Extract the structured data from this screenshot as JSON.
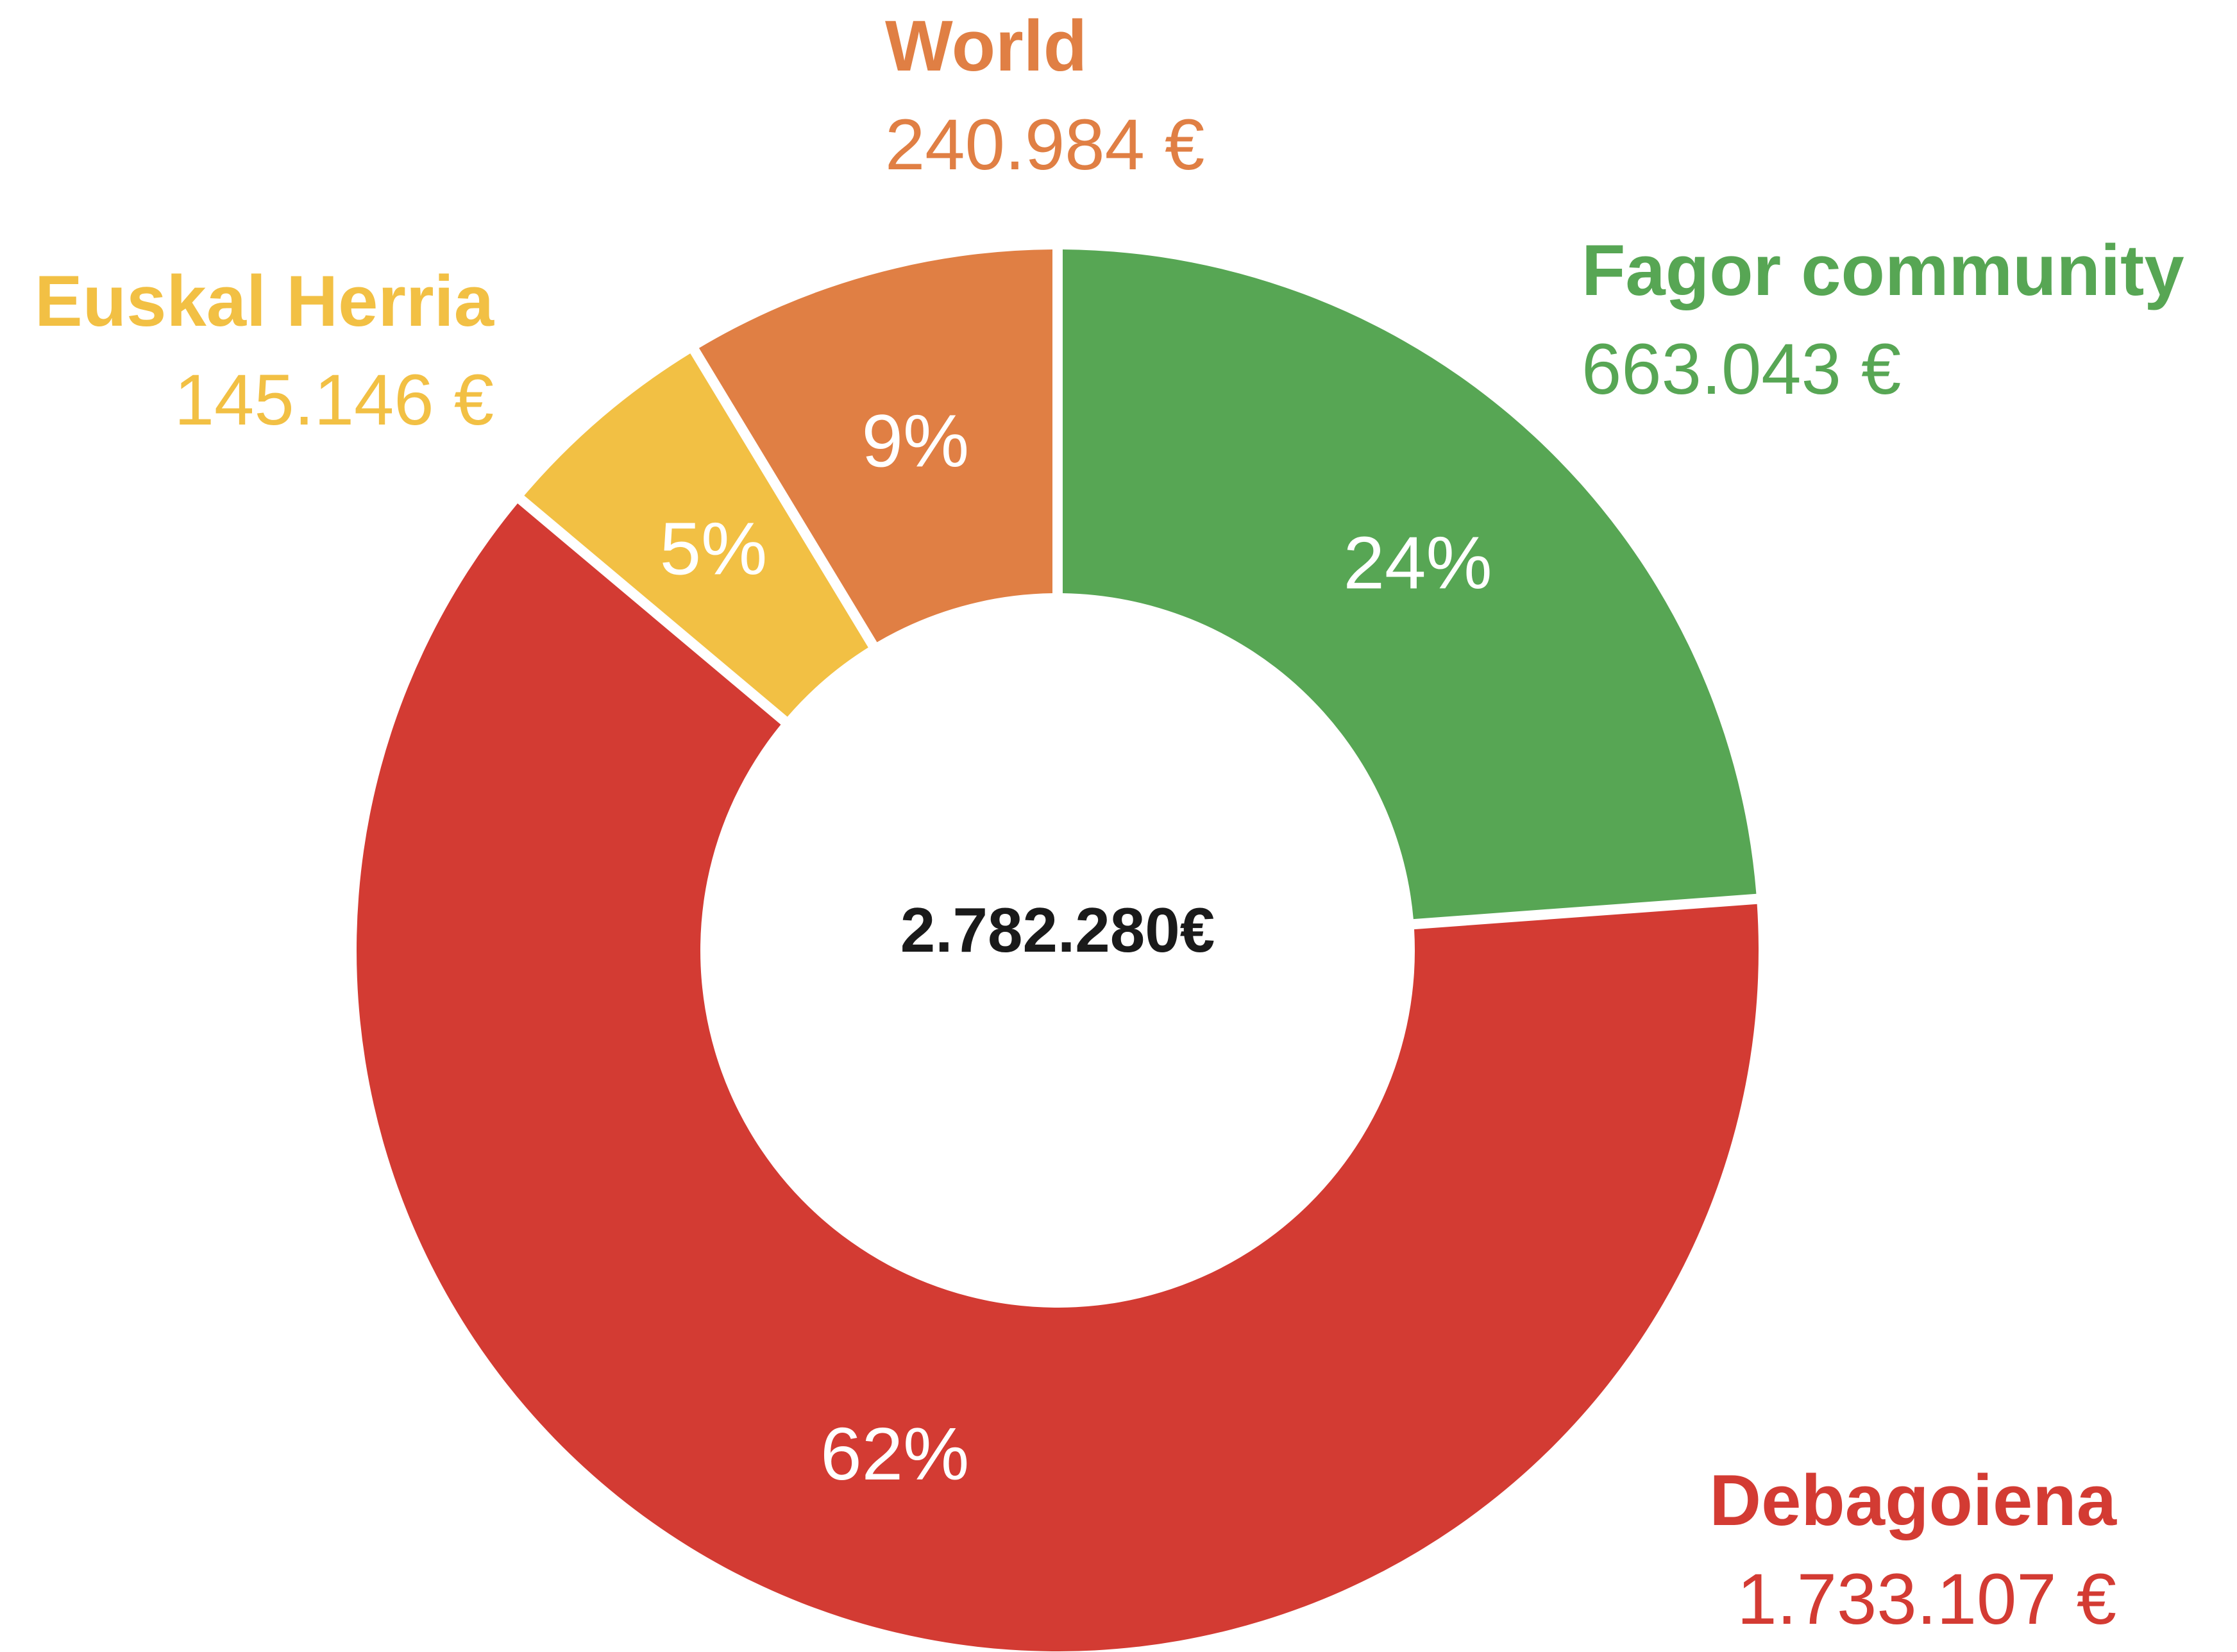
{
  "chart_data": {
    "type": "pie",
    "donut": true,
    "center_total": "2.782.280€",
    "slices": [
      {
        "name": "Fagor community",
        "amount": 663043,
        "amount_label": "663.043 €",
        "percent_label": "24%",
        "color": "#57a654"
      },
      {
        "name": "Debagoiena",
        "amount": 1733107,
        "amount_label": "1.733.107 €",
        "percent_label": "62%",
        "color": "#d33b33"
      },
      {
        "name": "Euskal Herria",
        "amount": 145146,
        "amount_label": "145.146 €",
        "percent_label": "5%",
        "color": "#f2c044"
      },
      {
        "name": "World",
        "amount": 240984,
        "amount_label": "240.984 €",
        "percent_label": "9%",
        "color": "#e07f44"
      }
    ]
  }
}
